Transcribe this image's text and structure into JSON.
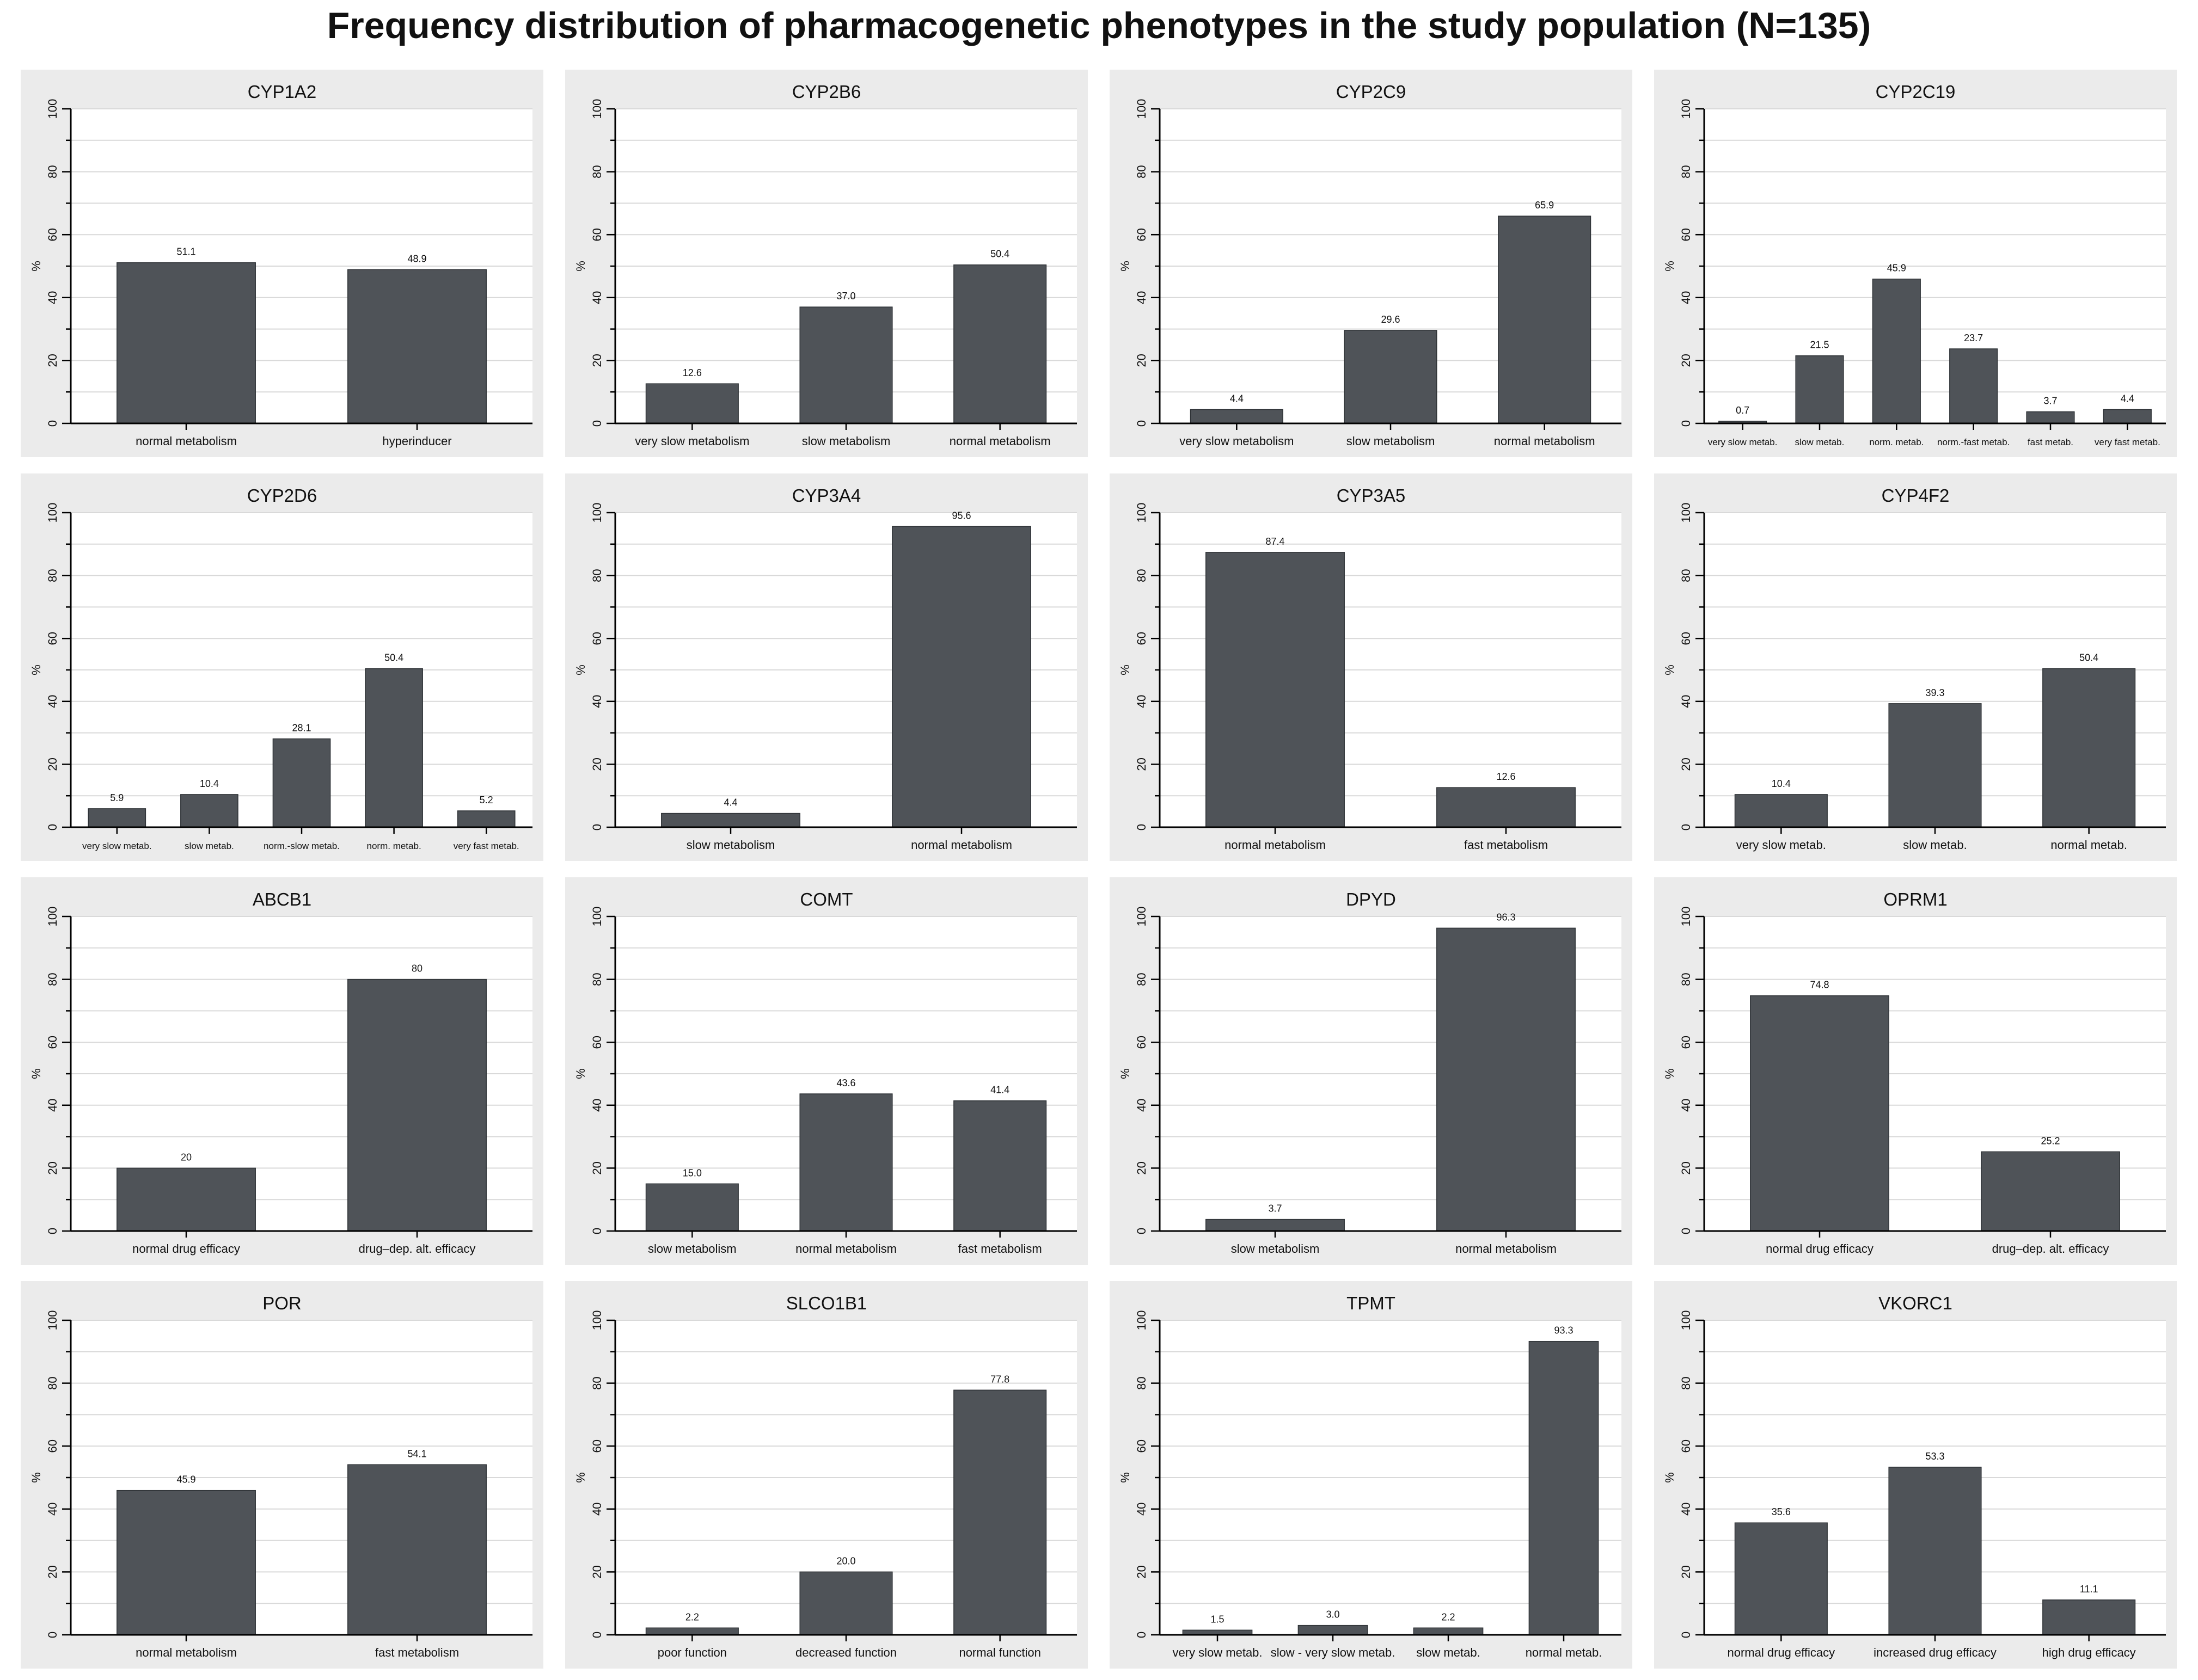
{
  "title": "Frequency distribution of pharmacogenetic phenotypes in the study population (N=135)",
  "colors": {
    "bar": "#4f5358",
    "panel_bg": "#ebebeb",
    "plot_bg": "#ffffff",
    "grid": "#d9d9d9",
    "axis": "#000000"
  },
  "chart_data": [
    {
      "type": "bar",
      "title": "CYP1A2",
      "ylabel": "%",
      "ylim": [
        0,
        100
      ],
      "yticks": [
        "0",
        "20",
        "40",
        "60",
        "80",
        "100"
      ],
      "categories": [
        "normal metabolism",
        "hyperinducer"
      ],
      "values": [
        51.1,
        48.9
      ],
      "labels": [
        "51.1",
        "48.9"
      ]
    },
    {
      "type": "bar",
      "title": "CYP2B6",
      "ylabel": "%",
      "ylim": [
        0,
        100
      ],
      "yticks": [
        "0",
        "20",
        "40",
        "60",
        "80",
        "100"
      ],
      "categories": [
        "very slow metabolism",
        "slow metabolism",
        "normal metabolism"
      ],
      "values": [
        12.6,
        37.0,
        50.4
      ],
      "labels": [
        "12.6",
        "37.0",
        "50.4"
      ]
    },
    {
      "type": "bar",
      "title": "CYP2C9",
      "ylabel": "%",
      "ylim": [
        0,
        100
      ],
      "yticks": [
        "0",
        "20",
        "40",
        "60",
        "80",
        "100"
      ],
      "categories": [
        "very slow metabolism",
        "slow metabolism",
        "normal metabolism"
      ],
      "values": [
        4.4,
        29.6,
        65.9
      ],
      "labels": [
        "4.4",
        "29.6",
        "65.9"
      ]
    },
    {
      "type": "bar",
      "title": "CYP2C19",
      "ylabel": "%",
      "ylim": [
        0,
        100
      ],
      "yticks": [
        "0",
        "20",
        "40",
        "60",
        "80",
        "100"
      ],
      "categories": [
        "very slow metab.",
        "slow metab.",
        "norm. metab.",
        "norm.-fast metab.",
        "fast metab.",
        "very fast metab."
      ],
      "values": [
        0.7,
        21.5,
        45.9,
        23.7,
        3.7,
        4.4
      ],
      "labels": [
        "0.7",
        "21.5",
        "45.9",
        "23.7",
        "3.7",
        "4.4"
      ]
    },
    {
      "type": "bar",
      "title": "CYP2D6",
      "ylabel": "%",
      "ylim": [
        0,
        100
      ],
      "yticks": [
        "0",
        "20",
        "40",
        "60",
        "80",
        "100"
      ],
      "categories": [
        "very slow metab.",
        "slow metab.",
        "norm.-slow metab.",
        "norm. metab.",
        "very fast metab."
      ],
      "values": [
        5.9,
        10.4,
        28.1,
        50.4,
        5.2
      ],
      "labels": [
        "5.9",
        "10.4",
        "28.1",
        "50.4",
        "5.2"
      ]
    },
    {
      "type": "bar",
      "title": "CYP3A4",
      "ylabel": "%",
      "ylim": [
        0,
        100
      ],
      "yticks": [
        "0",
        "20",
        "40",
        "60",
        "80",
        "100"
      ],
      "categories": [
        "slow metabolism",
        "normal metabolism"
      ],
      "values": [
        4.4,
        95.6
      ],
      "labels": [
        "4.4",
        "95.6"
      ]
    },
    {
      "type": "bar",
      "title": "CYP3A5",
      "ylabel": "%",
      "ylim": [
        0,
        100
      ],
      "yticks": [
        "0",
        "20",
        "40",
        "60",
        "80",
        "100"
      ],
      "categories": [
        "normal metabolism",
        "fast metabolism"
      ],
      "values": [
        87.4,
        12.6
      ],
      "labels": [
        "87.4",
        "12.6"
      ]
    },
    {
      "type": "bar",
      "title": "CYP4F2",
      "ylabel": "%",
      "ylim": [
        0,
        100
      ],
      "yticks": [
        "0",
        "20",
        "40",
        "60",
        "80",
        "100"
      ],
      "categories": [
        "very slow metab.",
        "slow metab.",
        "normal metab."
      ],
      "values": [
        10.4,
        39.3,
        50.4
      ],
      "labels": [
        "10.4",
        "39.3",
        "50.4"
      ]
    },
    {
      "type": "bar",
      "title": "ABCB1",
      "ylabel": "%",
      "ylim": [
        0,
        100
      ],
      "yticks": [
        "0",
        "20",
        "40",
        "60",
        "80",
        "100"
      ],
      "categories": [
        "normal drug efficacy",
        "drug–dep. alt. efficacy"
      ],
      "values": [
        20,
        80
      ],
      "labels": [
        "20",
        "80"
      ]
    },
    {
      "type": "bar",
      "title": "COMT",
      "ylabel": "%",
      "ylim": [
        0,
        100
      ],
      "yticks": [
        "0",
        "20",
        "40",
        "60",
        "80",
        "100"
      ],
      "categories": [
        "slow metabolism",
        "normal metabolism",
        "fast metabolism"
      ],
      "values": [
        15.0,
        43.6,
        41.4
      ],
      "labels": [
        "15.0",
        "43.6",
        "41.4"
      ]
    },
    {
      "type": "bar",
      "title": "DPYD",
      "ylabel": "%",
      "ylim": [
        0,
        100
      ],
      "yticks": [
        "0",
        "20",
        "40",
        "60",
        "80",
        "100"
      ],
      "categories": [
        "slow metabolism",
        "normal metabolism"
      ],
      "values": [
        3.7,
        96.3
      ],
      "labels": [
        "3.7",
        "96.3"
      ]
    },
    {
      "type": "bar",
      "title": "OPRM1",
      "ylabel": "%",
      "ylim": [
        0,
        100
      ],
      "yticks": [
        "0",
        "20",
        "40",
        "60",
        "80",
        "100"
      ],
      "categories": [
        "normal drug efficacy",
        "drug–dep. alt. efficacy"
      ],
      "values": [
        74.8,
        25.2
      ],
      "labels": [
        "74.8",
        "25.2"
      ]
    },
    {
      "type": "bar",
      "title": "POR",
      "ylabel": "%",
      "ylim": [
        0,
        100
      ],
      "yticks": [
        "0",
        "20",
        "40",
        "60",
        "80",
        "100"
      ],
      "categories": [
        "normal metabolism",
        "fast metabolism"
      ],
      "values": [
        45.9,
        54.1
      ],
      "labels": [
        "45.9",
        "54.1"
      ]
    },
    {
      "type": "bar",
      "title": "SLCO1B1",
      "ylabel": "%",
      "ylim": [
        0,
        100
      ],
      "yticks": [
        "0",
        "20",
        "40",
        "60",
        "80",
        "100"
      ],
      "categories": [
        "poor function",
        "decreased function",
        "normal function"
      ],
      "values": [
        2.2,
        20.0,
        77.8
      ],
      "labels": [
        "2.2",
        "20.0",
        "77.8"
      ]
    },
    {
      "type": "bar",
      "title": "TPMT",
      "ylabel": "%",
      "ylim": [
        0,
        100
      ],
      "yticks": [
        "0",
        "20",
        "40",
        "60",
        "80",
        "100"
      ],
      "categories": [
        "very slow metab.",
        "slow - very slow metab.",
        "slow metab.",
        "normal metab."
      ],
      "values": [
        1.5,
        3.0,
        2.2,
        93.3
      ],
      "labels": [
        "1.5",
        "3.0",
        "2.2",
        "93.3"
      ]
    },
    {
      "type": "bar",
      "title": "VKORC1",
      "ylabel": "%",
      "ylim": [
        0,
        100
      ],
      "yticks": [
        "0",
        "20",
        "40",
        "60",
        "80",
        "100"
      ],
      "categories": [
        "normal drug efficacy",
        "increased drug efficacy",
        "high drug efficacy"
      ],
      "values": [
        35.6,
        53.3,
        11.1
      ],
      "labels": [
        "35.6",
        "53.3",
        "11.1"
      ]
    }
  ]
}
